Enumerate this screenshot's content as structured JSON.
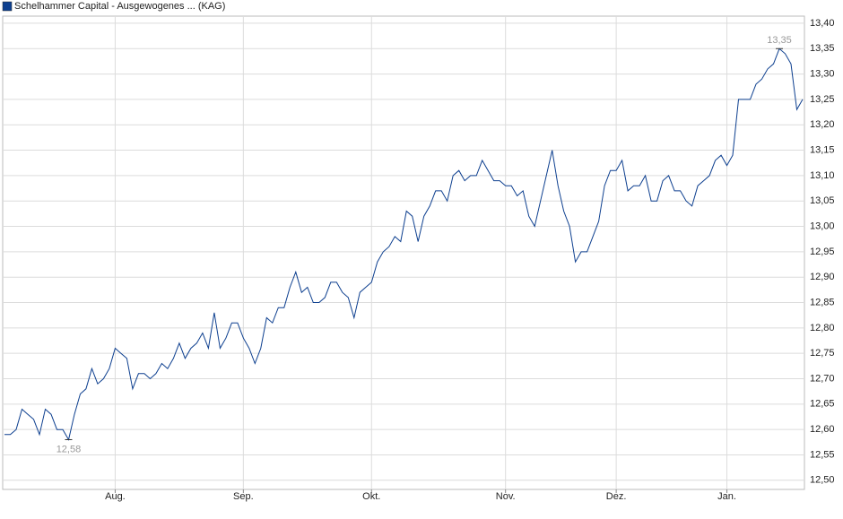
{
  "chart_data": {
    "type": "line",
    "series": [
      {
        "name": "Schelhammer Capital - Ausgewogenes ... (KAG)",
        "color": "#0d3f8f",
        "values": [
          12.59,
          12.59,
          12.6,
          12.64,
          12.63,
          12.62,
          12.59,
          12.64,
          12.63,
          12.6,
          12.6,
          12.58,
          12.63,
          12.67,
          12.68,
          12.72,
          12.69,
          12.7,
          12.72,
          12.76,
          12.75,
          12.74,
          12.68,
          12.71,
          12.71,
          12.7,
          12.71,
          12.73,
          12.72,
          12.74,
          12.77,
          12.74,
          12.76,
          12.77,
          12.79,
          12.76,
          12.83,
          12.76,
          12.78,
          12.81,
          12.81,
          12.78,
          12.76,
          12.73,
          12.76,
          12.82,
          12.81,
          12.84,
          12.84,
          12.88,
          12.91,
          12.87,
          12.88,
          12.85,
          12.85,
          12.86,
          12.89,
          12.89,
          12.87,
          12.86,
          12.82,
          12.87,
          12.88,
          12.89,
          12.93,
          12.95,
          12.96,
          12.98,
          12.97,
          13.03,
          13.02,
          12.97,
          13.02,
          13.04,
          13.07,
          13.07,
          13.05,
          13.1,
          13.11,
          13.09,
          13.1,
          13.1,
          13.13,
          13.11,
          13.09,
          13.09,
          13.08,
          13.08,
          13.06,
          13.07,
          13.02,
          13.0,
          13.05,
          13.1,
          13.15,
          13.08,
          13.03,
          13.0,
          12.93,
          12.95,
          12.95,
          12.98,
          13.01,
          13.08,
          13.11,
          13.11,
          13.13,
          13.07,
          13.08,
          13.08,
          13.1,
          13.05,
          13.05,
          13.09,
          13.1,
          13.07,
          13.07,
          13.05,
          13.04,
          13.08,
          13.09,
          13.1,
          13.13,
          13.14,
          13.12,
          13.14,
          13.25,
          13.25,
          13.25,
          13.28,
          13.29,
          13.31,
          13.32,
          13.35,
          13.34,
          13.32,
          13.23,
          13.25
        ],
        "value_labels": [
          null,
          null,
          null,
          null,
          null,
          null,
          null,
          null,
          null,
          null,
          null,
          "12,58",
          null,
          null,
          null,
          null,
          null,
          null,
          null,
          null,
          null,
          null,
          null,
          null,
          null,
          null,
          null,
          null,
          null,
          null,
          null,
          null,
          null,
          null,
          null,
          null,
          null,
          null,
          null,
          null,
          null,
          null,
          null,
          null,
          null,
          null,
          null,
          null,
          null,
          null,
          null,
          null,
          null,
          null,
          null,
          null,
          null,
          null,
          null,
          null,
          null,
          null,
          null,
          null,
          null,
          null,
          null,
          null,
          null,
          null,
          null,
          null,
          null,
          null,
          null,
          null,
          null,
          null,
          null,
          null,
          null,
          null,
          null,
          null,
          null,
          null,
          null,
          null,
          null,
          null,
          null,
          null,
          null,
          null,
          null,
          null,
          null,
          null,
          null,
          null,
          null,
          null,
          null,
          null,
          null,
          null,
          null,
          null,
          null,
          null,
          null,
          null,
          null,
          null,
          null,
          null,
          null,
          null,
          null,
          null,
          null,
          null,
          null,
          null,
          null,
          null,
          null,
          null,
          null,
          null,
          null,
          null,
          null,
          "13,35",
          null,
          null,
          null,
          null
        ]
      }
    ],
    "categories": [
      null,
      null,
      null,
      null,
      null,
      null,
      null,
      null,
      null,
      null,
      null,
      null,
      null,
      null,
      null,
      null,
      null,
      null,
      null,
      "Aug.",
      null,
      null,
      null,
      null,
      null,
      null,
      null,
      null,
      null,
      null,
      null,
      null,
      null,
      null,
      null,
      null,
      null,
      null,
      null,
      null,
      null,
      "Sep.",
      null,
      null,
      null,
      null,
      null,
      null,
      null,
      null,
      null,
      null,
      null,
      null,
      null,
      null,
      null,
      null,
      null,
      null,
      null,
      null,
      null,
      "Okt.",
      null,
      null,
      null,
      null,
      null,
      null,
      null,
      null,
      null,
      null,
      null,
      null,
      null,
      null,
      null,
      null,
      null,
      null,
      null,
      null,
      null,
      null,
      "Nov.",
      null,
      null,
      null,
      null,
      null,
      null,
      null,
      null,
      null,
      null,
      null,
      null,
      null,
      null,
      null,
      null,
      null,
      null,
      "Dez.",
      null,
      null,
      null,
      null,
      null,
      null,
      null,
      null,
      null,
      null,
      null,
      null,
      null,
      null,
      null,
      null,
      null,
      null,
      "Jan.",
      null,
      null,
      null,
      null,
      null,
      null,
      null,
      null,
      null,
      null,
      null,
      null,
      null
    ],
    "ylim": [
      12.482,
      13.414
    ],
    "yticks": [
      {
        "value": 12.5,
        "label": "12,50"
      },
      {
        "value": 12.55,
        "label": "12,55"
      },
      {
        "value": 12.6,
        "label": "12,60"
      },
      {
        "value": 12.65,
        "label": "12,65"
      },
      {
        "value": 12.7,
        "label": "12,70"
      },
      {
        "value": 12.75,
        "label": "12,75"
      },
      {
        "value": 12.8,
        "label": "12,80"
      },
      {
        "value": 12.85,
        "label": "12,85"
      },
      {
        "value": 12.9,
        "label": "12,90"
      },
      {
        "value": 12.95,
        "label": "12,95"
      },
      {
        "value": 13.0,
        "label": "13,00"
      },
      {
        "value": 13.05,
        "label": "13,05"
      },
      {
        "value": 13.1,
        "label": "13,10"
      },
      {
        "value": 13.15,
        "label": "13,15"
      },
      {
        "value": 13.2,
        "label": "13,20"
      },
      {
        "value": 13.25,
        "label": "13,25"
      },
      {
        "value": 13.3,
        "label": "13,30"
      },
      {
        "value": 13.35,
        "label": "13,35"
      },
      {
        "value": 13.4,
        "label": "13,40"
      }
    ],
    "grid": true
  }
}
